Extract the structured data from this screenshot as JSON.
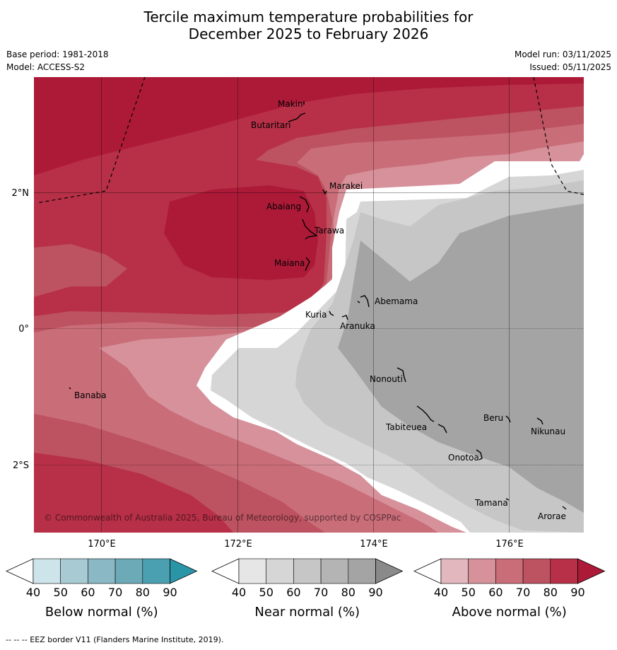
{
  "title": {
    "line1": "Tercile maximum temperature probabilities for",
    "line2": "December 2025 to February 2026"
  },
  "meta": {
    "base_period": "Base period: 1981-2018",
    "model": "Model: ACCESS-S2",
    "model_run": "Model run: 03/11/2025",
    "issued": "Issued: 05/11/2025"
  },
  "colors": {
    "above": [
      "#ffffff",
      "#e3b7be",
      "#d6919a",
      "#c96d79",
      "#bd5260",
      "#b73047",
      "#ad1a38"
    ],
    "near": [
      "#ffffff",
      "#e6e6e6",
      "#d6d6d6",
      "#c6c6c6",
      "#b4b4b4",
      "#a4a4a4",
      "#8a8a8a"
    ],
    "below": [
      "#ffffff",
      "#cde4ea",
      "#a8cbd3",
      "#8ab8c4",
      "#6caab8",
      "#4aa0b1",
      "#2b95a8"
    ]
  },
  "map": {
    "lon_ticks": [
      "170°E",
      "172°E",
      "174°E",
      "176°E"
    ],
    "lat_ticks": [
      "2°N",
      "0°",
      "2°S"
    ],
    "places": [
      {
        "name": "Makin"
      },
      {
        "name": "Butaritari"
      },
      {
        "name": "Marakei"
      },
      {
        "name": "Abaiang"
      },
      {
        "name": "Tarawa"
      },
      {
        "name": "Maiana"
      },
      {
        "name": "Abemama"
      },
      {
        "name": "Kuria"
      },
      {
        "name": "Aranuka"
      },
      {
        "name": "Banaba"
      },
      {
        "name": "Nonouti"
      },
      {
        "name": "Beru"
      },
      {
        "name": "Tabiteuea"
      },
      {
        "name": "Nikunau"
      },
      {
        "name": "Onotoa"
      },
      {
        "name": "Tamana"
      },
      {
        "name": "Arorae"
      }
    ],
    "copyright": "© Commonwealth of Australia 2025, Bureau of Meteorology, supported by COSPPac"
  },
  "legends": [
    {
      "label": "Below normal (%)",
      "ticks": [
        "40",
        "50",
        "60",
        "70",
        "80",
        "90"
      ]
    },
    {
      "label": "Near normal (%)",
      "ticks": [
        "40",
        "50",
        "60",
        "70",
        "80",
        "90"
      ]
    },
    {
      "label": "Above normal (%)",
      "ticks": [
        "40",
        "50",
        "60",
        "70",
        "80",
        "90"
      ]
    }
  ],
  "footer": "--  --  -- EEZ border V11 (Flanders Marine Institute, 2019)."
}
